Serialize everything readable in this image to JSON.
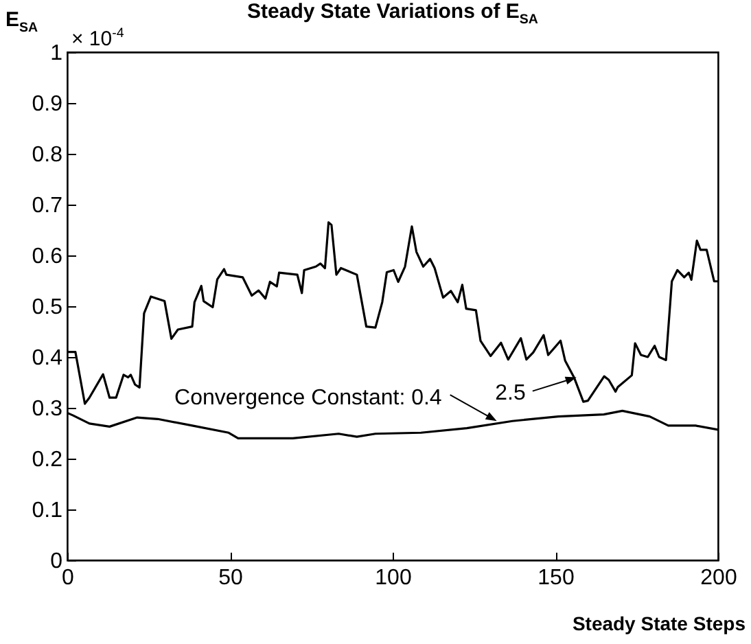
{
  "chart_data": {
    "type": "line",
    "title": "Steady State Variations of E$_{SA}$",
    "xlabel": "Steady State Steps",
    "ylabel": "E$_{SA}$",
    "annotations": [
      "× 10$^{-4}$",
      {
        "text": "Convergence Constant: 0.4",
        "x": 132,
        "y": 0.274
      },
      {
        "text": "2.5",
        "x": 156.5,
        "y": 0.36
      }
    ],
    "xlim": [
      0,
      200
    ],
    "xticks": [
      0,
      50,
      100,
      150,
      200
    ],
    "ylim": [
      0,
      1
    ],
    "yticks": [
      0,
      0.1,
      0.2,
      0.3,
      0.4,
      0.5,
      0.6,
      0.7,
      0.8,
      0.9,
      1
    ],
    "grid": false,
    "line_style": "solid",
    "series": [
      {
        "color": "#000000",
        "x": [
          0,
          2.5,
          5.4,
          6.8,
          11,
          13,
          15,
          17.3,
          18.7,
          19.5,
          20.8,
          22.2,
          23.6,
          25.7,
          29.9,
          32,
          34,
          38.4,
          39.1,
          41.2,
          41.9,
          44.7,
          46.1,
          48.2,
          48.9,
          53.9,
          56.7,
          58.8,
          60.9,
          62.3,
          64.4,
          65.1,
          70.7,
          72.1,
          72.8,
          76.4,
          77.8,
          79.2,
          80.3,
          81.2,
          82.7,
          84.1,
          89,
          91.9,
          94.7,
          96.8,
          98.2,
          100.3,
          101.7,
          103.8,
          105.9,
          107.3,
          109.4,
          111.5,
          112.9,
          115.5,
          117.9,
          120,
          121.4,
          122.6,
          125.6,
          127,
          130.1,
          133.3,
          135.5,
          139.4,
          141.1,
          143.2,
          146.4,
          147.8,
          151.6,
          153,
          155.8,
          158.6,
          160,
          165,
          166.4,
          168.5,
          169.2,
          173.5,
          174.5,
          176.3,
          178.4,
          180.5,
          181.9,
          184,
          185.8,
          187.5,
          189.6,
          191,
          191.8,
          193.5,
          194.6,
          196.5,
          198.8,
          200
        ],
        "values": [
          0.41,
          0.41,
          0.308,
          0.32,
          0.366,
          0.32,
          0.32,
          0.365,
          0.36,
          0.365,
          0.346,
          0.34,
          0.486,
          0.519,
          0.51,
          0.436,
          0.454,
          0.46,
          0.508,
          0.54,
          0.51,
          0.498,
          0.553,
          0.573,
          0.562,
          0.557,
          0.521,
          0.531,
          0.515,
          0.548,
          0.539,
          0.566,
          0.562,
          0.526,
          0.571,
          0.578,
          0.584,
          0.575,
          0.665,
          0.66,
          0.562,
          0.575,
          0.562,
          0.46,
          0.458,
          0.508,
          0.567,
          0.571,
          0.548,
          0.578,
          0.657,
          0.607,
          0.578,
          0.593,
          0.575,
          0.517,
          0.53,
          0.508,
          0.542,
          0.495,
          0.492,
          0.432,
          0.402,
          0.428,
          0.395,
          0.437,
          0.395,
          0.409,
          0.443,
          0.404,
          0.432,
          0.393,
          0.359,
          0.312,
          0.314,
          0.362,
          0.355,
          0.332,
          0.341,
          0.364,
          0.427,
          0.404,
          0.4,
          0.422,
          0.4,
          0.394,
          0.549,
          0.571,
          0.557,
          0.566,
          0.552,
          0.629,
          0.611,
          0.611,
          0.549,
          0.549
        ]
      },
      {
        "color": "#000000",
        "x": [
          0,
          1.8,
          6.8,
          13,
          21.5,
          27.8,
          38.4,
          49.6,
          52.5,
          69.3,
          83.4,
          89,
          94.7,
          108.7,
          122.8,
          136.8,
          150.9,
          164.9,
          170.6,
          179,
          184.7,
          193.1,
          200
        ],
        "values": [
          0.29,
          0.285,
          0.269,
          0.263,
          0.281,
          0.278,
          0.265,
          0.251,
          0.24,
          0.24,
          0.249,
          0.243,
          0.249,
          0.251,
          0.26,
          0.274,
          0.283,
          0.287,
          0.294,
          0.283,
          0.265,
          0.265,
          0.257
        ]
      }
    ]
  }
}
